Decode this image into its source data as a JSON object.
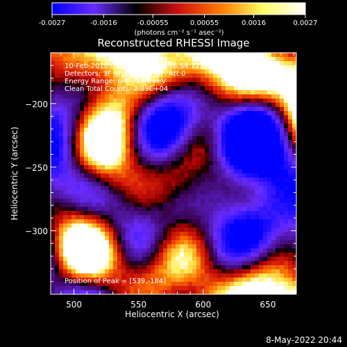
{
  "colorbar": {
    "tick_labels": [
      "-0.0027",
      "-0.0016",
      "-0.00055",
      "0.00055",
      "0.0016",
      "0.0027"
    ],
    "unit_label": "(photons cm⁻² s⁻¹ asec⁻²)",
    "range": [
      -0.0027,
      0.0027
    ],
    "colors": [
      "#0000ff",
      "#6a2cff",
      "#000000",
      "#d01010",
      "#ff7a00",
      "#ffff66",
      "#ffffff"
    ]
  },
  "chart_data": {
    "type": "heatmap",
    "title": "Reconstructed RHESSI Image",
    "xlabel": "Heliocentric X (arcsec)",
    "ylabel": "Heliocentric Y (arcsec)",
    "xlim": [
      482,
      672
    ],
    "ylim": [
      -350,
      -160
    ],
    "x_ticks": [
      500,
      550,
      600,
      650
    ],
    "y_ticks": [
      -200,
      -250,
      -300
    ],
    "annotations": [
      "10-Feb-2010 06:51:28.000 to 06:54:12.000",
      "Detectors: 3F 4F 5F 6F 7F 8F, Att 0",
      "Energy Range: 6.0 - 12.0 keV",
      "Clean     Total Counts: 2.39E+04"
    ],
    "peak_label": "Position of Peak = [539,-184]",
    "peak": [
      539,
      -184
    ]
  },
  "footer": {
    "date": "8-May-2022 20:44"
  }
}
